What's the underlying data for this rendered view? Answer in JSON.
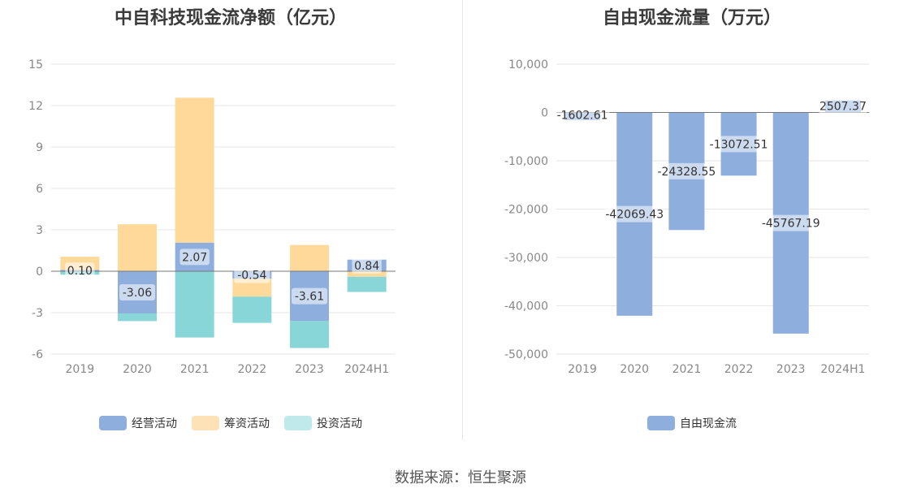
{
  "source": "数据来源：恒生聚源",
  "charts": {
    "left": {
      "title": "中自科技现金流净额（亿元）",
      "legend": [
        {
          "name": "经营活动",
          "color": "#8eaedd"
        },
        {
          "name": "筹资活动",
          "color": "#fde2b8"
        },
        {
          "name": "投资活动",
          "color": "#bfe9ea"
        }
      ]
    },
    "right": {
      "title": "自由现金流量（万元）",
      "legend": [
        {
          "name": "自由现金流",
          "color": "#8eaedd"
        }
      ]
    }
  },
  "chart_data": [
    {
      "type": "bar",
      "stacked": true,
      "title": "中自科技现金流净额（亿元）",
      "categories": [
        "2019",
        "2020",
        "2021",
        "2022",
        "2023",
        "2024H1"
      ],
      "ylim": [
        -6,
        15
      ],
      "yticks": [
        15,
        12,
        9,
        6,
        3,
        0,
        -3,
        -6
      ],
      "grid": true,
      "legend_position": "bottom",
      "series": [
        {
          "name": "经营活动",
          "color": "#8eaedd",
          "values": [
            0.1,
            -3.06,
            2.07,
            -0.54,
            -3.61,
            0.84
          ],
          "labels": [
            "0.10",
            "-3.06",
            "2.07",
            "-0.54",
            "-3.61",
            "0.84"
          ]
        },
        {
          "name": "筹资活动",
          "color": "#ffd99a",
          "values": [
            0.95,
            3.4,
            10.5,
            -1.3,
            1.9,
            -0.4
          ]
        },
        {
          "name": "投资活动",
          "color": "#88d6d8",
          "values": [
            -0.25,
            -0.55,
            -4.8,
            -1.9,
            -1.95,
            -1.1
          ]
        }
      ]
    },
    {
      "type": "bar",
      "title": "自由现金流量（万元）",
      "categories": [
        "2019",
        "2020",
        "2021",
        "2022",
        "2023",
        "2024H1"
      ],
      "ylim": [
        -50000,
        10000
      ],
      "yticks": [
        "10,000",
        "0",
        "-10,000",
        "-20,000",
        "-30,000",
        "-40,000",
        "-50,000"
      ],
      "grid": true,
      "legend_position": "bottom",
      "series": [
        {
          "name": "自由现金流",
          "color": "#8eaedd",
          "values": [
            -1602.61,
            -42069.43,
            -24328.55,
            -13072.51,
            -45767.19,
            2507.37
          ],
          "labels": [
            "-1602.61",
            "-42069.43",
            "-24328.55",
            "-13072.51",
            "-45767.19",
            "2507.37"
          ]
        }
      ]
    }
  ]
}
